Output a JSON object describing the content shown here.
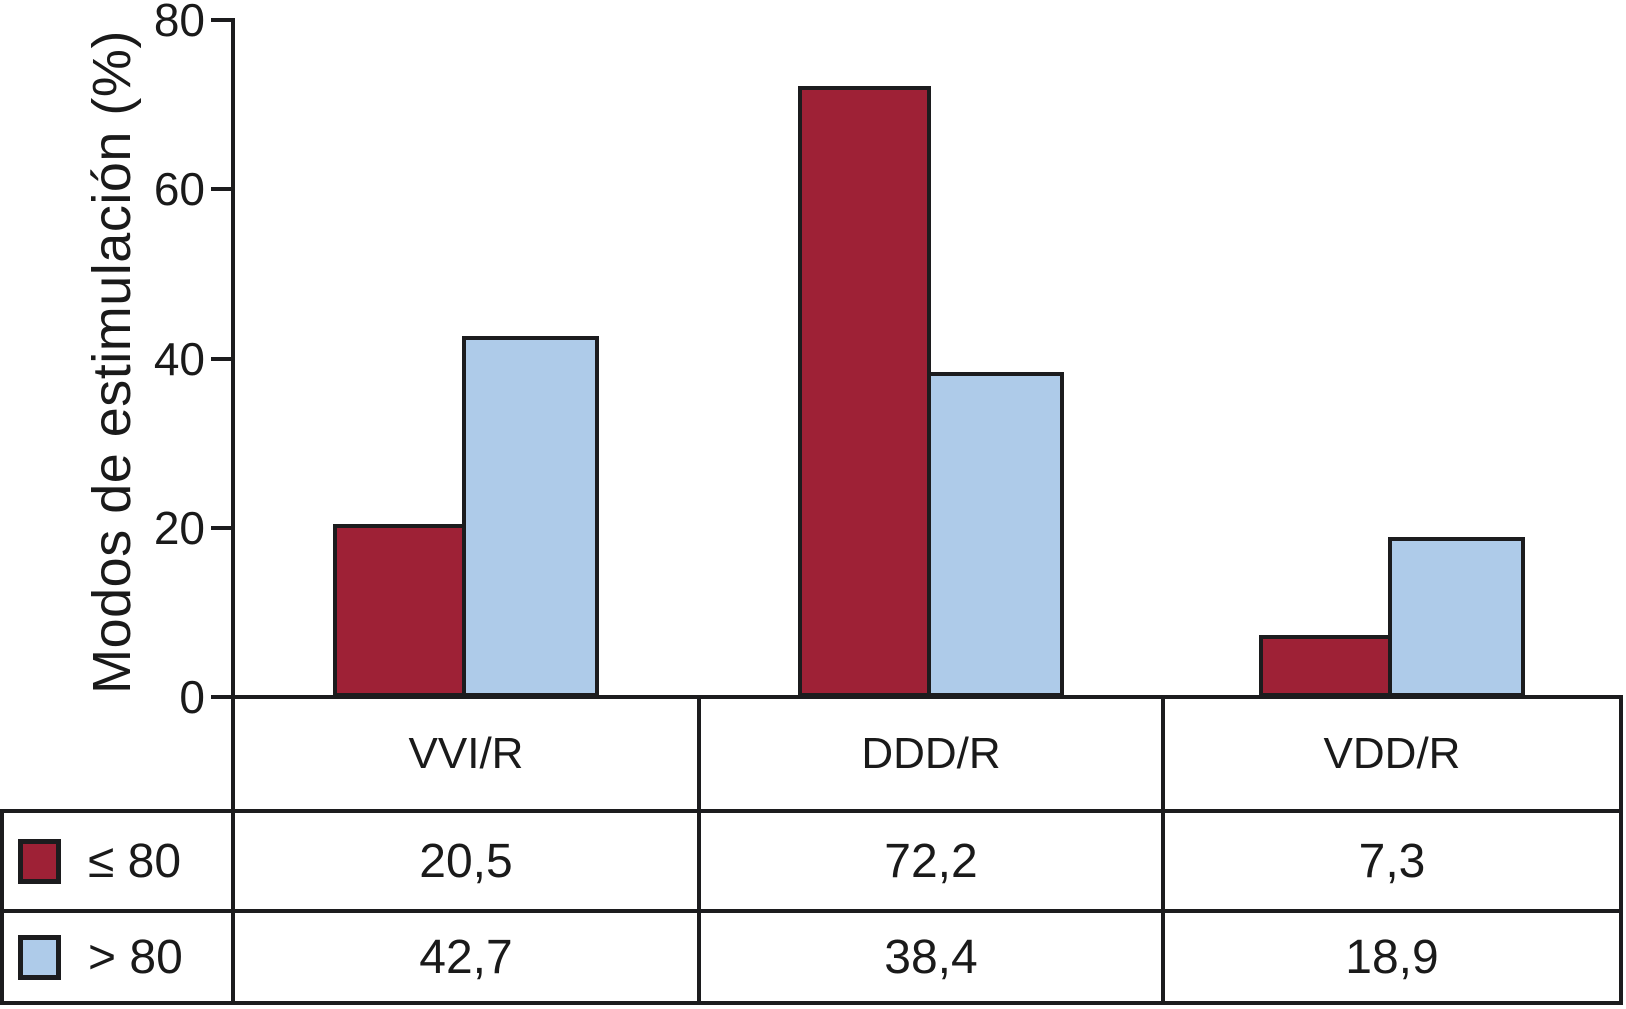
{
  "figure": {
    "background": "#ffffff",
    "axis_color": "#1c1c1e",
    "bar_outline_color": "#1c1c1e",
    "text_color": "#1a1a1a"
  },
  "chart_data": {
    "type": "bar",
    "title": "",
    "xlabel": "",
    "ylabel": "Modos de estimulación (%)",
    "categories": [
      "VVI/R",
      "DDD/R",
      "VDD/R"
    ],
    "series": [
      {
        "name": "≤ 80",
        "color": "#9e2136",
        "values": [
          20.5,
          72.2,
          7.3
        ],
        "display": [
          "20,5",
          "72,2",
          "7,3"
        ]
      },
      {
        "name": "> 80",
        "color": "#aecbe9",
        "values": [
          42.7,
          38.4,
          18.9
        ],
        "display": [
          "42,7",
          "38,4",
          "18,9"
        ]
      }
    ],
    "y_ticks": [
      0,
      20,
      40,
      60,
      80
    ],
    "ylim": [
      0,
      80
    ],
    "grid": false,
    "legend_position": "bottom-left table rows"
  }
}
